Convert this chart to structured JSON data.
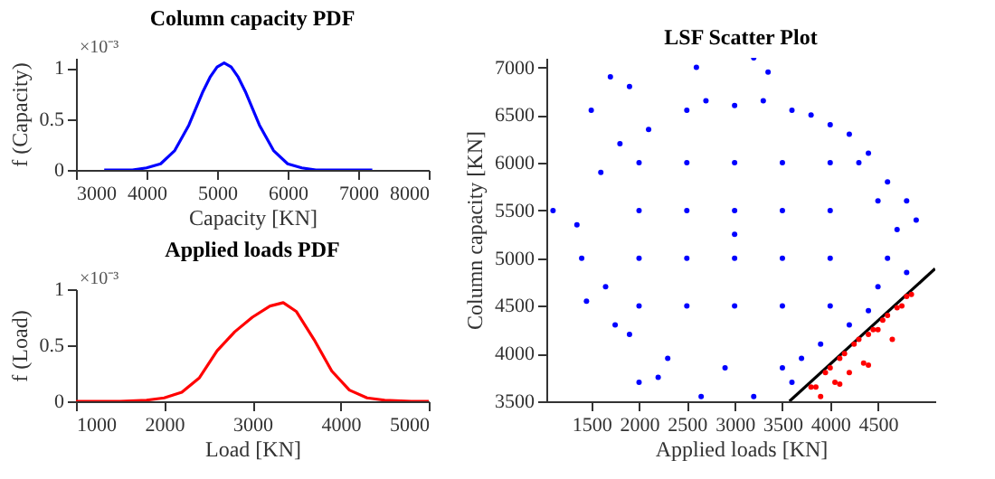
{
  "chart_data": [
    {
      "type": "line",
      "title": "Column capacity PDF",
      "xlabel": "Capacity [KN]",
      "ylabel": "f (Capacity)",
      "annotations": [
        "×10⁻³"
      ],
      "grid": false,
      "xlim": [
        3000,
        8000
      ],
      "xticks": [
        3000,
        4000,
        5000,
        6000,
        7000,
        8000
      ],
      "ylim": [
        0,
        1.1
      ],
      "yticks": [
        0,
        0.5,
        1
      ],
      "x": [
        3400,
        3800,
        4000,
        4200,
        4400,
        4600,
        4800,
        4900,
        5000,
        5100,
        5200,
        5300,
        5400,
        5600,
        5800,
        6000,
        6200,
        6400,
        6800,
        7200
      ],
      "series": [
        {
          "color": "#0000ff",
          "values": [
            0,
            0,
            0.02,
            0.06,
            0.19,
            0.44,
            0.77,
            0.91,
            1.01,
            1.05,
            1.01,
            0.91,
            0.77,
            0.44,
            0.19,
            0.06,
            0.02,
            0,
            0,
            0
          ]
        }
      ]
    },
    {
      "type": "line",
      "title": "Applied loads PDF",
      "xlabel": "Load [KN]",
      "ylabel": "f (Load)",
      "annotations": [
        "×10⁻³"
      ],
      "grid": false,
      "xlim": [
        1000,
        5000
      ],
      "xticks": [
        1000,
        2000,
        3000,
        4000,
        5000
      ],
      "ylim": [
        0,
        1
      ],
      "yticks": [
        0,
        0.5,
        1
      ],
      "x": [
        1000,
        1500,
        1800,
        2000,
        2200,
        2400,
        2600,
        2800,
        3000,
        3200,
        3350,
        3500,
        3700,
        3900,
        4100,
        4300,
        4500,
        4800,
        5000
      ],
      "series": [
        {
          "color": "#ff0000",
          "values": [
            0,
            0,
            0.01,
            0.03,
            0.08,
            0.21,
            0.45,
            0.62,
            0.75,
            0.85,
            0.88,
            0.8,
            0.55,
            0.27,
            0.1,
            0.03,
            0.01,
            0,
            0
          ]
        }
      ]
    },
    {
      "type": "scatter",
      "title": "LSF Scatter Plot",
      "xlabel": "Applied loads [KN]",
      "ylabel": "Column capacity [KN]",
      "grid": false,
      "marker": "circle",
      "xlim": [
        1030,
        5100
      ],
      "xticks": [
        1500,
        2000,
        2500,
        3000,
        3500,
        4000,
        4500
      ],
      "ylim": [
        3500,
        7100
      ],
      "yticks": [
        3500,
        4000,
        4500,
        5000,
        5500,
        6000,
        6500,
        7000
      ],
      "series": [
        {
          "type": "line",
          "color": "#000000",
          "marker": "none",
          "x": [
            3574,
            5098
          ],
          "values": [
            3500,
            4890
          ]
        },
        {
          "color": "#0000ff",
          "x": [
            1100,
            1350,
            1400,
            1450,
            1500,
            1700,
            1750,
            1900,
            2000,
            2200,
            2600,
            2650,
            3200,
            3350,
            3200,
            3600,
            4400,
            4600,
            4800,
            4900,
            4800,
            1600,
            1650,
            1800,
            1900,
            2100,
            2300,
            2500,
            2700,
            2900,
            3000,
            3300,
            3500,
            3600,
            3800,
            3700,
            4000,
            4200,
            4400,
            4500,
            4600,
            4700,
            4500,
            4300,
            3900,
            4200,
            2000,
            2500,
            3000,
            3500,
            4000,
            2000,
            2500,
            3000,
            3500,
            4000,
            2000,
            2500,
            3000,
            3500,
            4000,
            2000,
            2500,
            3000,
            3500,
            4000,
            3000
          ],
          "values": [
            5500,
            5350,
            5000,
            4550,
            6550,
            6900,
            4300,
            6800,
            3700,
            3750,
            7000,
            3550,
            7100,
            6950,
            3550,
            3700,
            6100,
            5800,
            5600,
            5400,
            4850,
            5900,
            4700,
            6200,
            4200,
            6350,
            3950,
            6550,
            6650,
            3850,
            6600,
            6650,
            3850,
            6550,
            6500,
            3950,
            6400,
            6300,
            4450,
            4700,
            5000,
            5300,
            5600,
            6000,
            4100,
            4300,
            4500,
            4500,
            4500,
            4500,
            4500,
            5000,
            5000,
            5000,
            5000,
            5000,
            5500,
            5500,
            5500,
            5500,
            5500,
            6000,
            6000,
            6000,
            6000,
            6000,
            5250
          ]
        },
        {
          "color": "#ff0000",
          "x": [
            3800,
            3900,
            3950,
            4000,
            4050,
            4100,
            4150,
            4200,
            4250,
            4300,
            4350,
            4400,
            4450,
            4500,
            4550,
            4600,
            4650,
            4700,
            4750,
            4800,
            4850,
            4400,
            4100,
            3850
          ],
          "values": [
            3650,
            3550,
            3800,
            3850,
            3700,
            3950,
            4000,
            3800,
            4100,
            4150,
            3900,
            4200,
            4250,
            4250,
            4350,
            4400,
            4150,
            4480,
            4500,
            4600,
            4620,
            3880,
            3680,
            3650
          ]
        }
      ]
    }
  ]
}
